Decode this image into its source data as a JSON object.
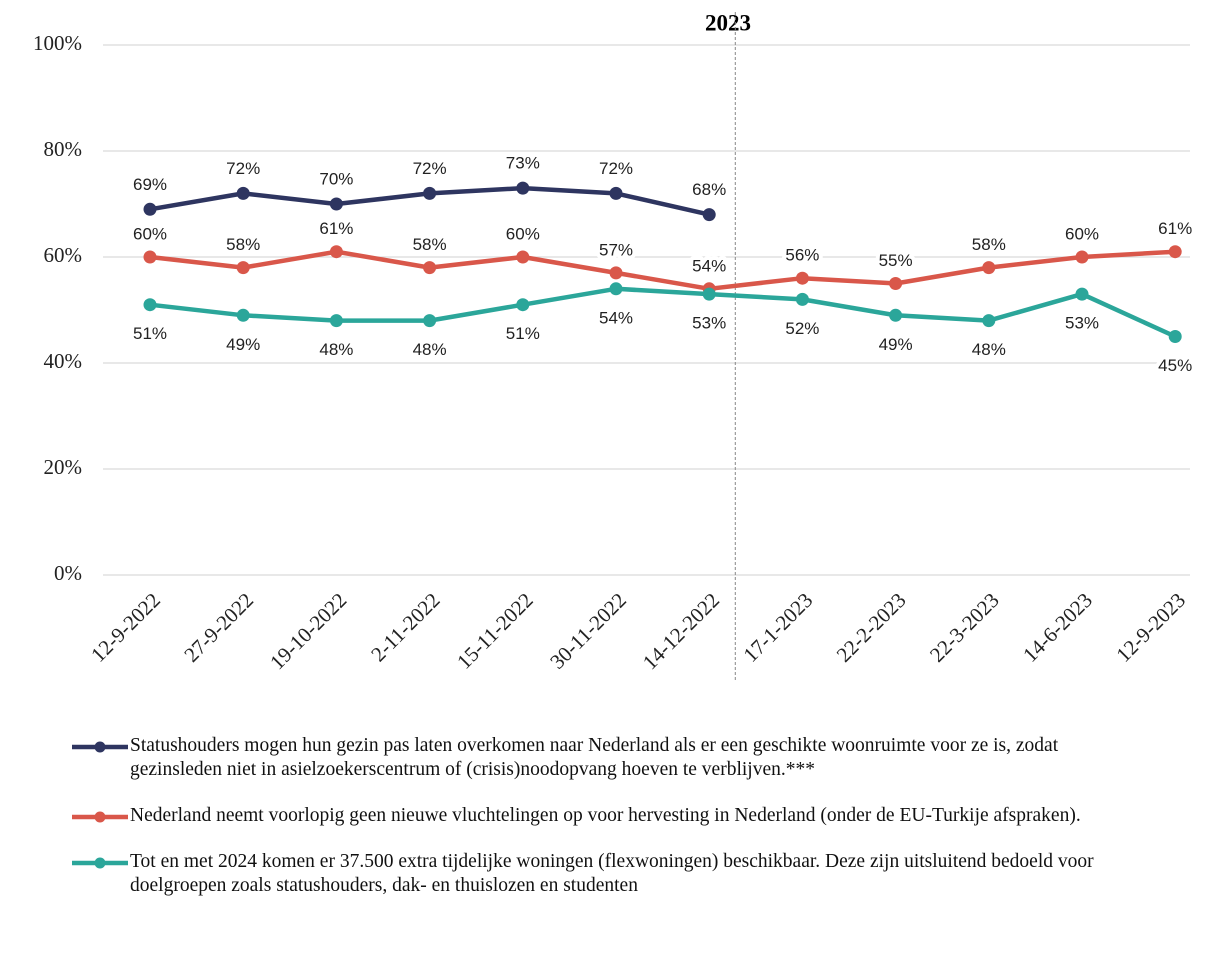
{
  "chart_data": {
    "type": "line",
    "annotation": "2023",
    "categories": [
      "12-9-2022",
      "27-9-2022",
      "19-10-2022",
      "2-11-2022",
      "15-11-2022",
      "30-11-2022",
      "14-12-2022",
      "17-1-2023",
      "22-2-2023",
      "22-3-2023",
      "14-6-2023",
      "12-9-2023"
    ],
    "ylim": [
      0,
      100
    ],
    "yticks": [
      {
        "value": 0,
        "label": "0%"
      },
      {
        "value": 20,
        "label": "20%"
      },
      {
        "value": 40,
        "label": "40%"
      },
      {
        "value": 60,
        "label": "60%"
      },
      {
        "value": 80,
        "label": "80%"
      },
      {
        "value": 100,
        "label": "100%"
      }
    ],
    "grid": true,
    "series": [
      {
        "name": "Statushouders mogen hun gezin pas laten overkomen naar Nederland als er een geschikte woonruimte voor ze is, zodat gezinsleden niet in asielzoekerscentrum of (crisis)noodopvang hoeven te verblijven.***",
        "color": "#2e3560",
        "values": [
          69,
          72,
          70,
          72,
          73,
          72,
          68,
          null,
          null,
          null,
          null,
          null
        ],
        "value_labels": [
          "69%",
          "72%",
          "70%",
          "72%",
          "73%",
          "72%",
          "68%",
          null,
          null,
          null,
          null,
          null
        ]
      },
      {
        "name": "Nederland neemt voorlopig geen nieuwe vluchtelingen op voor hervesting in Nederland (onder de EU-Turkije afspraken).",
        "color": "#d9574a",
        "values": [
          60,
          58,
          61,
          58,
          60,
          57,
          54,
          56,
          55,
          58,
          60,
          61
        ],
        "value_labels": [
          "60%",
          "58%",
          "61%",
          "58%",
          "60%",
          "57%",
          "54%",
          "56%",
          "55%",
          "58%",
          "60%",
          "61%"
        ]
      },
      {
        "name": "Tot en met 2024 komen er 37.500 extra tijdelijke woningen (flexwoningen) beschikbaar. Deze zijn uitsluitend bedoeld voor doelgroepen zoals statushouders, dak- en thuislozen en studenten",
        "color": "#2ba69a",
        "values": [
          51,
          49,
          48,
          48,
          51,
          54,
          53,
          52,
          49,
          48,
          53,
          45
        ],
        "value_labels": [
          "51%",
          "49%",
          "48%",
          "48%",
          "51%",
          "54%",
          "53%",
          "52%",
          "49%",
          "48%",
          "53%",
          "45%"
        ]
      }
    ]
  }
}
